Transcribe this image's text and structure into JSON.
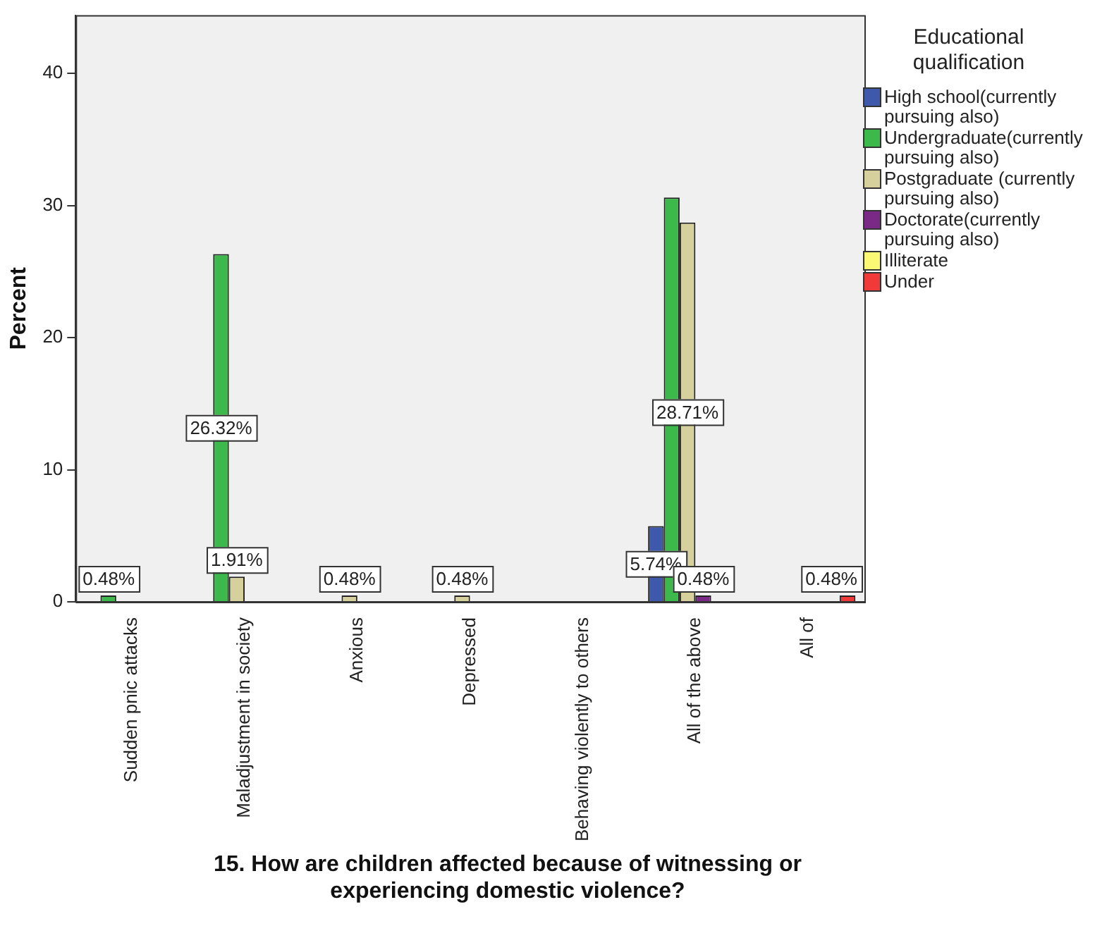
{
  "chart_data": {
    "type": "bar",
    "xlabel": "15. How are children affected because of witnessing or experiencing domestic violence?",
    "ylabel": "Percent",
    "legend_title": "Educational qualification",
    "categories": [
      "Sudden pnic attacks",
      "Maladjustment in society",
      "Anxious",
      "Depressed",
      "Behaving violently to others",
      "All of the above",
      "All of"
    ],
    "series": [
      {
        "name": "High school(currently pursuing also)",
        "color": "#3e58ac",
        "values": [
          null,
          null,
          null,
          null,
          null,
          5.74,
          null
        ],
        "value_labels": [
          null,
          null,
          null,
          null,
          null,
          "5.74%",
          null
        ]
      },
      {
        "name": "Undergraduate(currently pursuing also)",
        "color": "#3cb94a",
        "values": [
          0.48,
          26.32,
          null,
          null,
          null,
          30.6,
          null
        ],
        "value_labels": [
          "0.48%",
          "26.32%",
          null,
          null,
          null,
          null,
          null
        ]
      },
      {
        "name": "Postgraduate (currently pursuing also)",
        "color": "#d6d09c",
        "values": [
          null,
          1.91,
          0.48,
          0.48,
          null,
          28.71,
          null
        ],
        "value_labels": [
          null,
          "1.91%",
          "0.48%",
          "0.48%",
          null,
          "28.71%",
          null
        ]
      },
      {
        "name": "Doctorate(currently pursuing also)",
        "color": "#7a2a86",
        "values": [
          null,
          null,
          null,
          null,
          null,
          0.48,
          null
        ],
        "value_labels": [
          null,
          null,
          null,
          null,
          null,
          "0.48%",
          null
        ]
      },
      {
        "name": "Illiterate",
        "color": "#fbf873",
        "values": [
          null,
          null,
          null,
          null,
          null,
          null,
          null
        ]
      },
      {
        "name": "Under",
        "color": "#f03a3a",
        "values": [
          null,
          null,
          null,
          null,
          null,
          null,
          0.48
        ],
        "value_labels": [
          null,
          null,
          null,
          null,
          null,
          null,
          "0.48%"
        ]
      }
    ],
    "ylim": [
      0,
      44.4
    ],
    "yticks": [
      0,
      10,
      20,
      30,
      40
    ],
    "grid": false,
    "legend": "right"
  }
}
